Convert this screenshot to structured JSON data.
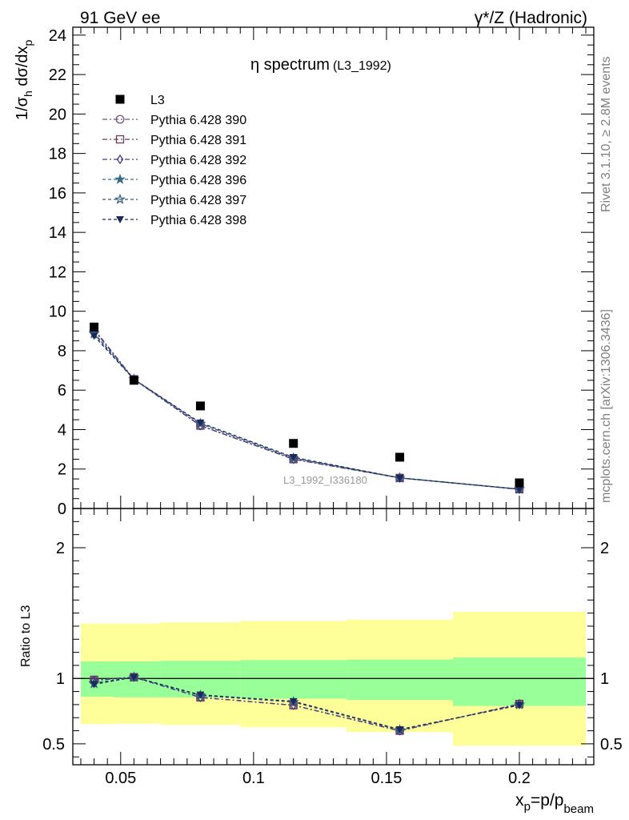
{
  "header": {
    "left": "91 GeV ee",
    "right": "γ*/Z (Hadronic)"
  },
  "side_labels": {
    "rivet": "Rivet 3.1.10, ≥ 2.8M events",
    "mcplots": "mcplots.cern.ch [arXiv:1306.3436]"
  },
  "watermark": "L3_1992_I336180",
  "colors": {
    "data": "#000000",
    "p390": "#7b4f7e",
    "p391": "#6f3a59",
    "p392": "#4b3a8c",
    "p396": "#3a6e86",
    "p397": "#2f5a7a",
    "p398": "#1a2a5c",
    "band_inner": "#99ff99",
    "band_outer": "#ffff99"
  },
  "chart_data": [
    {
      "type": "scatter",
      "panel": "main",
      "title_main": "η spectrum",
      "title_sub": "(L3_1992)",
      "ylabel": "1/σ_h dσ/dx_p",
      "xlim": [
        0.032,
        0.228
      ],
      "ylim": [
        0,
        24.4
      ],
      "yticks": [
        0,
        2,
        4,
        6,
        8,
        10,
        12,
        14,
        16,
        18,
        20,
        22,
        24
      ],
      "legend_position": "top-left",
      "x": [
        0.04,
        0.055,
        0.08,
        0.115,
        0.155,
        0.2
      ],
      "series": [
        {
          "name": "L3",
          "marker": "square",
          "values": [
            9.2,
            6.5,
            5.2,
            3.3,
            2.6,
            1.3
          ]
        },
        {
          "name": "Pythia 6.428 390",
          "marker": "circle",
          "values": [
            9.05,
            6.55,
            4.2,
            2.5,
            1.55,
            0.98
          ]
        },
        {
          "name": "Pythia 6.428 391",
          "marker": "square-open",
          "values": [
            9.1,
            6.55,
            4.2,
            2.5,
            1.55,
            0.98
          ]
        },
        {
          "name": "Pythia 6.428 392",
          "marker": "diamond",
          "values": [
            9.05,
            6.55,
            4.2,
            2.5,
            1.55,
            0.98
          ]
        },
        {
          "name": "Pythia 6.428 396",
          "marker": "star",
          "values": [
            8.85,
            6.55,
            4.3,
            2.55,
            1.55,
            0.98
          ]
        },
        {
          "name": "Pythia 6.428 397",
          "marker": "star-open",
          "values": [
            8.9,
            6.55,
            4.3,
            2.55,
            1.55,
            0.98
          ]
        },
        {
          "name": "Pythia 6.428 398",
          "marker": "triangle-down",
          "values": [
            8.75,
            6.55,
            4.35,
            2.6,
            1.55,
            0.98
          ]
        }
      ]
    },
    {
      "type": "line",
      "panel": "ratio",
      "ylabel": "Ratio to L3",
      "xlabel": "x_p=p/p_beam",
      "xlim": [
        0.032,
        0.228
      ],
      "ylim": [
        0.34,
        2.3
      ],
      "yticks": [
        0.5,
        1,
        2
      ],
      "xticks": [
        0.05,
        0.1,
        0.15,
        0.2
      ],
      "bands": [
        {
          "x0": 0.035,
          "x1": 0.0475,
          "inner": [
            0.86,
            1.13
          ],
          "outer": [
            0.65,
            1.42
          ]
        },
        {
          "x0": 0.0475,
          "x1": 0.065,
          "inner": [
            0.855,
            1.13
          ],
          "outer": [
            0.655,
            1.42
          ]
        },
        {
          "x0": 0.065,
          "x1": 0.095,
          "inner": [
            0.855,
            1.135
          ],
          "outer": [
            0.645,
            1.43
          ]
        },
        {
          "x0": 0.095,
          "x1": 0.135,
          "inner": [
            0.845,
            1.14
          ],
          "outer": [
            0.625,
            1.44
          ]
        },
        {
          "x0": 0.135,
          "x1": 0.175,
          "inner": [
            0.835,
            1.145
          ],
          "outer": [
            0.59,
            1.45
          ]
        },
        {
          "x0": 0.175,
          "x1": 0.225,
          "inner": [
            0.79,
            1.16
          ],
          "outer": [
            0.485,
            1.51
          ]
        }
      ],
      "x": [
        0.04,
        0.055,
        0.08,
        0.115,
        0.155,
        0.2
      ],
      "series": [
        {
          "name": "Pythia 6.428 390",
          "values": [
            0.985,
            1.01,
            0.855,
            0.795,
            0.6,
            0.805
          ]
        },
        {
          "name": "Pythia 6.428 391",
          "values": [
            0.99,
            1.01,
            0.855,
            0.795,
            0.6,
            0.805
          ]
        },
        {
          "name": "Pythia 6.428 392",
          "values": [
            0.985,
            1.01,
            0.855,
            0.795,
            0.6,
            0.805
          ]
        },
        {
          "name": "Pythia 6.428 396",
          "values": [
            0.96,
            1.01,
            0.87,
            0.82,
            0.605,
            0.8
          ]
        },
        {
          "name": "Pythia 6.428 397",
          "values": [
            0.965,
            1.01,
            0.87,
            0.82,
            0.605,
            0.8
          ]
        },
        {
          "name": "Pythia 6.428 398",
          "values": [
            0.955,
            1.01,
            0.875,
            0.825,
            0.61,
            0.795
          ]
        }
      ]
    }
  ]
}
